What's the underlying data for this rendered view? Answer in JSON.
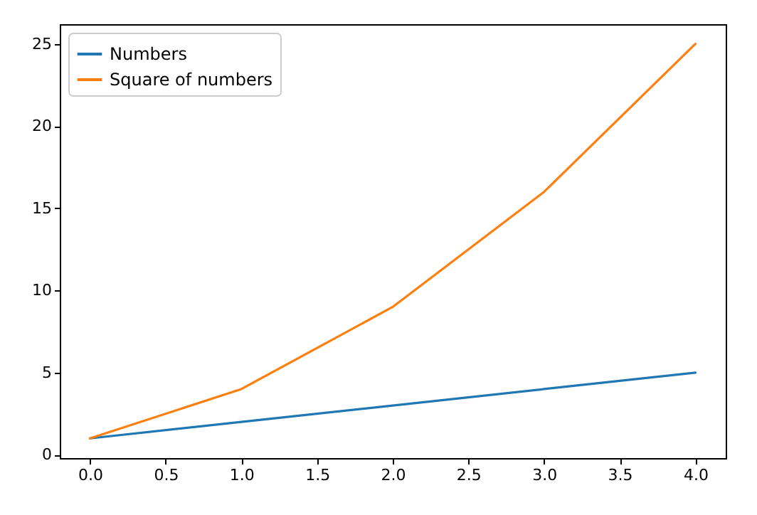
{
  "chart_data": {
    "type": "line",
    "x": [
      0,
      1,
      2,
      3,
      4
    ],
    "series": [
      {
        "name": "Numbers",
        "color": "#1f77b4",
        "values": [
          1,
          2,
          3,
          4,
          5
        ]
      },
      {
        "name": "Square of numbers",
        "color": "#ff7f0e",
        "values": [
          1,
          4,
          9,
          16,
          25
        ]
      }
    ],
    "xlim": [
      -0.2,
      4.2
    ],
    "xticks": [
      {
        "value": 0,
        "label": "0.0"
      },
      {
        "value": 0.5,
        "label": "0.5"
      },
      {
        "value": 1,
        "label": "1.0"
      },
      {
        "value": 1.5,
        "label": "1.5"
      },
      {
        "value": 2,
        "label": "2.0"
      },
      {
        "value": 2.5,
        "label": "2.5"
      },
      {
        "value": 3,
        "label": "3.0"
      },
      {
        "value": 3.5,
        "label": "3.5"
      },
      {
        "value": 4,
        "label": "4.0"
      }
    ],
    "ylim": [
      -0.2,
      26.2
    ],
    "yticks": [
      0,
      5,
      10,
      15,
      20,
      25
    ],
    "grid": false,
    "legend": "top left"
  }
}
